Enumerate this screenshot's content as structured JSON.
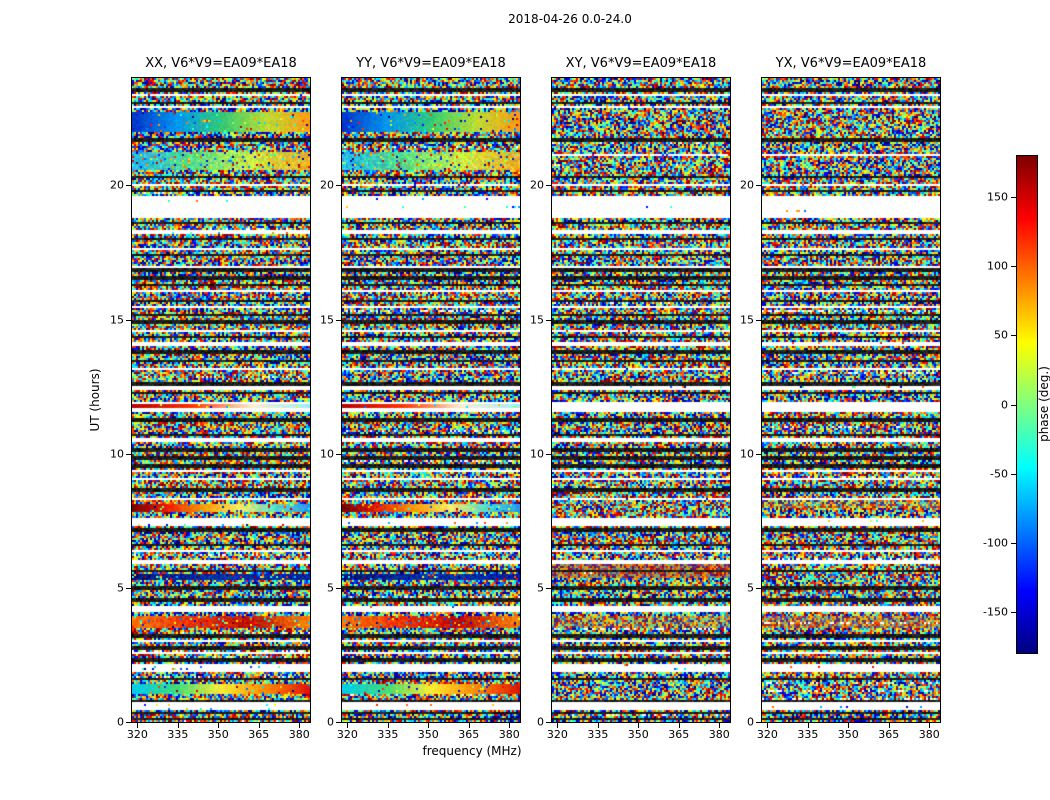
{
  "figure": {
    "title": "2018-04-26 0.0-24.0"
  },
  "chart_data": {
    "type": "heatmap",
    "title": "2018-04-26 0.0-24.0",
    "xlabel": "frequency (MHz)",
    "ylabel": "UT (hours)",
    "x_ticks": [
      320,
      335,
      350,
      365,
      380
    ],
    "x_range": [
      318,
      384
    ],
    "y_ticks": [
      0,
      5,
      10,
      15,
      20
    ],
    "y_range": [
      0,
      24
    ],
    "panels": [
      {
        "key": "XX",
        "title": "XX, V6*V9=EA09*EA18",
        "coherent": true
      },
      {
        "key": "YY",
        "title": "YY, V6*V9=EA09*EA18",
        "coherent": true
      },
      {
        "key": "XY",
        "title": "XY, V6*V9=EA09*EA18",
        "coherent": false
      },
      {
        "key": "YX",
        "title": "YX, V6*V9=EA09*EA18",
        "coherent": false
      }
    ],
    "colorbar": {
      "label": "phase (deg.)",
      "ticks": [
        150,
        100,
        50,
        0,
        -50,
        -100,
        -150
      ],
      "range": [
        -180,
        180
      ],
      "colormap": "jet"
    },
    "noise_seed": 20180426,
    "flag_gaps": [
      [
        0.42,
        0.72
      ],
      [
        1.86,
        2.14
      ],
      [
        2.52,
        2.62
      ],
      [
        3.0,
        3.09
      ],
      [
        4.1,
        4.3
      ],
      [
        5.9,
        6.06
      ],
      [
        6.3,
        6.38
      ],
      [
        7.32,
        7.6
      ],
      [
        8.3,
        8.38
      ],
      [
        9.0,
        9.08
      ],
      [
        9.3,
        9.4
      ],
      [
        10.42,
        10.56
      ],
      [
        11.55,
        11.95
      ],
      [
        12.38,
        12.5
      ],
      [
        13.12,
        13.2
      ],
      [
        13.98,
        14.16
      ],
      [
        14.5,
        14.58
      ],
      [
        15.4,
        15.48
      ],
      [
        16.02,
        16.1
      ],
      [
        16.92,
        17.0
      ],
      [
        17.62,
        17.7
      ],
      [
        18.22,
        18.36
      ],
      [
        18.78,
        19.6
      ],
      [
        20.0,
        20.08
      ],
      [
        21.08,
        21.18
      ],
      [
        22.85,
        22.93
      ],
      [
        23.3,
        23.38
      ]
    ],
    "dark_lines": [
      0.12,
      0.35,
      0.8,
      1.6,
      2.3,
      2.75,
      3.2,
      4.55,
      5.0,
      5.62,
      6.6,
      7.15,
      8.65,
      9.55,
      9.85,
      10.15,
      10.7,
      11.25,
      12.25,
      12.6,
      13.45,
      13.8,
      14.35,
      14.9,
      15.15,
      15.7,
      16.3,
      16.55,
      16.85,
      17.4,
      18.0,
      18.6,
      19.8,
      20.3,
      21.7,
      23.05,
      23.55
    ],
    "coherent_bands": [
      {
        "ut": [
          21.99,
          22.73
        ],
        "colors": [
          "#0033cc",
          "#0099ee",
          "#33cc77",
          "#bbdd33",
          "#ff9911"
        ],
        "noise": 0.15
      },
      {
        "ut": [
          20.57,
          21.24
        ],
        "colors": [
          "#22bbee",
          "#55dd88",
          "#ccee44",
          "#eeaa22"
        ],
        "noise": 0.35
      },
      {
        "ut": [
          11.68,
          11.82
        ],
        "colors": [
          "#bb0000",
          "#ff3300",
          "#ffeecc",
          "#99eeff"
        ],
        "noise": 0.1
      },
      {
        "ut": [
          7.8,
          8.16
        ],
        "colors": [
          "#770000",
          "#ee2200",
          "#ff9900",
          "#ffee66",
          "#55ddcc",
          "#2299ee"
        ],
        "noise": 0.2
      },
      {
        "ut": [
          5.3,
          5.5
        ],
        "colors": [
          "#001177",
          "#0033aa",
          "#002299"
        ],
        "noise": 0.3
      },
      {
        "ut": [
          3.5,
          3.92
        ],
        "colors": [
          "#ff7700",
          "#ee3300",
          "#bb1100",
          "#ff8800"
        ],
        "noise": 0.35
      },
      {
        "ut": [
          1.04,
          1.45
        ],
        "colors": [
          "#00ccee",
          "#44dd77",
          "#ffee33",
          "#ff8800",
          "#dd1100"
        ],
        "noise": 0.12
      }
    ],
    "tint_bands": {
      "XY": [
        {
          "ut": [
            5.4,
            5.95
          ],
          "tint": "#dd3300",
          "strength": 0.45
        },
        {
          "ut": [
            3.5,
            3.92
          ],
          "tint": "#ee7700",
          "strength": 0.3
        }
      ],
      "YX": [
        {
          "ut": [
            3.5,
            3.95
          ],
          "tint": "#ee6600",
          "strength": 0.4
        },
        {
          "ut": [
            8.0,
            8.3
          ],
          "tint": "#ffaa00",
          "strength": 0.25
        }
      ]
    }
  }
}
